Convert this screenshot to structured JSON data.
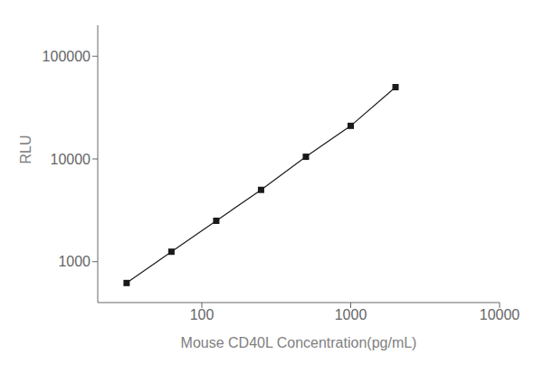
{
  "chart_data": {
    "type": "line",
    "x": [
      31.25,
      62.5,
      125,
      250,
      500,
      1000,
      2000
    ],
    "values": [
      620,
      1250,
      2500,
      5000,
      10500,
      21000,
      50000
    ],
    "color": "#1a1a1a",
    "marker": "square",
    "xlabel": "Mouse CD40L Concentration(pg/mL)",
    "ylabel": "RLU",
    "xlim": [
      20,
      10000
    ],
    "ylim": [
      400,
      200000
    ],
    "xticks": [
      100,
      1000,
      10000
    ],
    "yticks": [
      1000,
      10000,
      100000
    ],
    "log": true,
    "grid": false
  }
}
